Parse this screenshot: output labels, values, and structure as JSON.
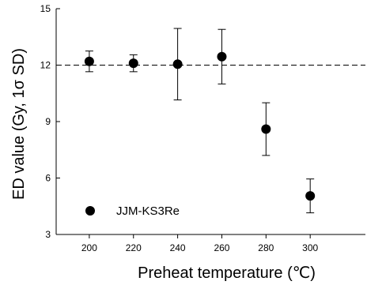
{
  "chart_data": {
    "type": "scatter",
    "xlabel": "Preheat temperature (℃)",
    "ylabel": "ED value (Gy, 1σ SD)",
    "xlim": [
      185,
      325
    ],
    "ylim": [
      3,
      15
    ],
    "xticks": [
      200,
      220,
      240,
      260,
      280,
      300
    ],
    "yticks": [
      3,
      6,
      9,
      12,
      15
    ],
    "reference_line": {
      "y": 12,
      "style": "dashed"
    },
    "legend": {
      "position": "bottom-left",
      "entries": [
        "JJM-KS3Re"
      ]
    },
    "series": [
      {
        "name": "JJM-KS3Re",
        "color": "#000000",
        "marker": "filled-circle",
        "points": [
          {
            "x": 200,
            "y": 12.2,
            "err": 0.55
          },
          {
            "x": 220,
            "y": 12.1,
            "err": 0.45
          },
          {
            "x": 240,
            "y": 12.05,
            "err": 1.9
          },
          {
            "x": 260,
            "y": 12.45,
            "err": 1.45
          },
          {
            "x": 280,
            "y": 8.6,
            "err": 1.4
          },
          {
            "x": 300,
            "y": 5.05,
            "err": 0.9
          }
        ]
      }
    ]
  }
}
